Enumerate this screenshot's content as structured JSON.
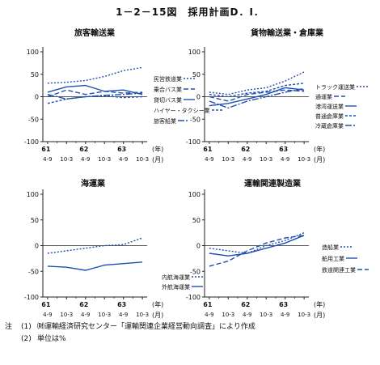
{
  "page": {
    "title": "1－2－15図　採用計画D．I．"
  },
  "notes": [
    {
      "mark": "注",
      "num": "(1)",
      "text": "㈶運輸経済研究センター「運輸関連企業経営動向調査」により作成"
    },
    {
      "mark": "",
      "num": "(2)",
      "text": "単位は%"
    }
  ],
  "chart_data": [
    {
      "type": "line",
      "title": "旅客輸送業",
      "ylim": [
        -100,
        100
      ],
      "yticks": [
        100,
        50,
        0,
        -50,
        -100
      ],
      "x_ticks": [
        "4-9",
        "10-3",
        "4-9",
        "10-3",
        "4-9",
        "10-3"
      ],
      "year_labels": [
        "61",
        "62",
        "63"
      ],
      "year_unit": "(年)",
      "month_unit": "(月)",
      "grid": false,
      "legend": "right",
      "series": [
        {
          "name": "民営鉄道業",
          "color": "#1f4fb0",
          "dash": "2,2",
          "values": [
            30,
            32,
            36,
            45,
            58,
            65
          ]
        },
        {
          "name": "乗合バス業",
          "color": "#1f4fb0",
          "dash": "6,3",
          "values": [
            0,
            15,
            5,
            12,
            8,
            10
          ]
        },
        {
          "name": "貸切バス業",
          "color": "#1f4fb0",
          "dash": "",
          "values": [
            10,
            22,
            25,
            12,
            15,
            5
          ]
        },
        {
          "name": "ハイヤー・タクシー業",
          "color": "#1f4fb0",
          "dash": "3,2",
          "values": [
            -15,
            -5,
            0,
            2,
            -2,
            0
          ]
        },
        {
          "name": "旅客船業",
          "color": "#1f4fb0",
          "dash": "8,2,2,2",
          "values": [
            5,
            -5,
            0,
            3,
            5,
            8
          ]
        }
      ]
    },
    {
      "type": "line",
      "title": "貨物輸送業・倉庫業",
      "ylim": [
        -100,
        100
      ],
      "yticks": [
        100,
        50,
        0,
        -50,
        -100
      ],
      "x_ticks": [
        "4-9",
        "10-3",
        "4-9",
        "10-3",
        "4-9",
        "10-3"
      ],
      "year_labels": [
        "61",
        "62",
        "63"
      ],
      "year_unit": "(年)",
      "month_unit": "(月)",
      "grid": false,
      "legend": "right",
      "series": [
        {
          "name": "トラック運送業",
          "color": "#1f4fb0",
          "dash": "2,2",
          "values": [
            10,
            5,
            15,
            20,
            35,
            55
          ]
        },
        {
          "name": "通運業",
          "color": "#1f4fb0",
          "dash": "6,3",
          "values": [
            0,
            -10,
            5,
            10,
            15,
            12
          ]
        },
        {
          "name": "港湾運送業",
          "color": "#1f4fb0",
          "dash": "",
          "values": [
            -20,
            -15,
            -5,
            5,
            20,
            15
          ]
        },
        {
          "name": "普通倉庫業",
          "color": "#1f4fb0",
          "dash": "3,2",
          "values": [
            5,
            0,
            8,
            12,
            25,
            30
          ]
        },
        {
          "name": "冷蔵倉庫業",
          "color": "#1f4fb0",
          "dash": "8,2,2,2",
          "values": [
            -10,
            -25,
            -10,
            0,
            10,
            18
          ]
        }
      ]
    },
    {
      "type": "line",
      "title": "海運業",
      "ylim": [
        -100,
        100
      ],
      "yticks": [
        100,
        50,
        0,
        -50,
        -100
      ],
      "x_ticks": [
        "4-9",
        "10-3",
        "4-9",
        "10-3",
        "4-9",
        "10-3"
      ],
      "year_labels": [
        "61",
        "62",
        "63"
      ],
      "year_unit": "(年)",
      "month_unit": "(月)",
      "grid": false,
      "legend": "right",
      "series": [
        {
          "name": "内航海運業",
          "color": "#1f4fb0",
          "dash": "2,2",
          "values": [
            -15,
            -10,
            -5,
            0,
            2,
            15
          ]
        },
        {
          "name": "外航海運業",
          "color": "#1f4fb0",
          "dash": "",
          "values": [
            -40,
            -42,
            -48,
            -38,
            -35,
            -32
          ]
        }
      ]
    },
    {
      "type": "line",
      "title": "運輸関連製造業",
      "ylim": [
        -100,
        100
      ],
      "yticks": [
        100,
        50,
        0,
        -50,
        -100
      ],
      "x_ticks": [
        "4-9",
        "10-3",
        "4-9",
        "10-3",
        "4-9",
        "10-3"
      ],
      "year_labels": [
        "61",
        "62",
        "63"
      ],
      "year_unit": "(年)",
      "month_unit": "(月)",
      "grid": false,
      "legend": "right",
      "series": [
        {
          "name": "造船業",
          "color": "#1f4fb0",
          "dash": "2,2",
          "values": [
            -5,
            -10,
            -15,
            0,
            10,
            25
          ]
        },
        {
          "name": "舶用工業",
          "color": "#1f4fb0",
          "dash": "",
          "values": [
            -15,
            -20,
            -15,
            -5,
            5,
            20
          ]
        },
        {
          "name": "鉄道関連工業",
          "color": "#1f4fb0",
          "dash": "6,3",
          "values": [
            -40,
            -30,
            -10,
            5,
            15,
            20
          ]
        }
      ]
    }
  ]
}
